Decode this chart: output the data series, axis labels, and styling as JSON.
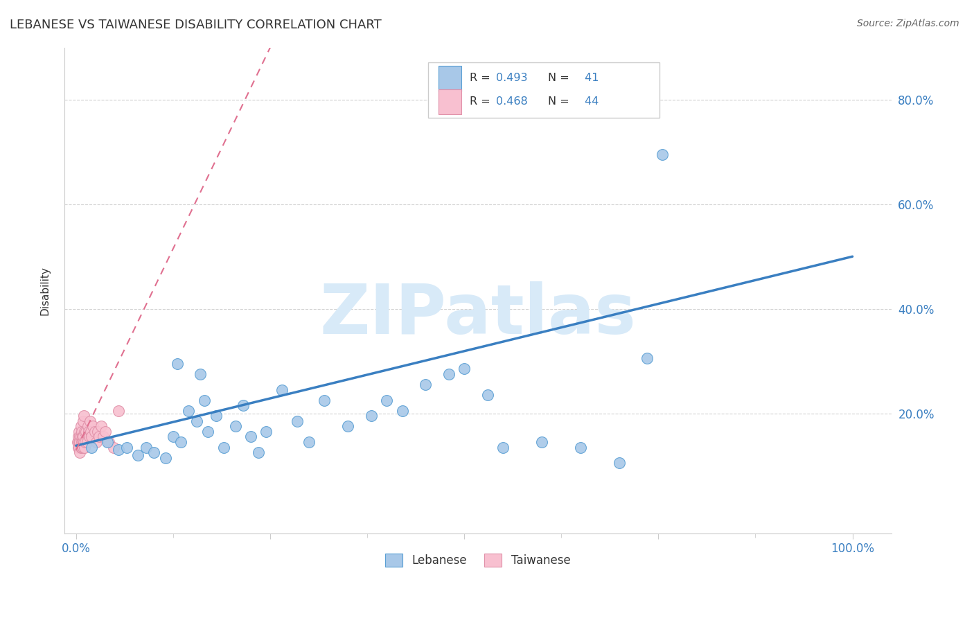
{
  "title": "LEBANESE VS TAIWANESE DISABILITY CORRELATION CHART",
  "source": "Source: ZipAtlas.com",
  "ylabel": "Disability",
  "xlim": [
    -0.015,
    1.05
  ],
  "ylim": [
    -0.03,
    0.9
  ],
  "xtick_positions": [
    0.0,
    0.25,
    0.5,
    0.75,
    1.0
  ],
  "xtick_labels": [
    "0.0%",
    "",
    "",
    "",
    "100.0%"
  ],
  "ytick_positions": [
    0.2,
    0.4,
    0.6,
    0.8
  ],
  "ytick_labels": [
    "20.0%",
    "40.0%",
    "60.0%",
    "80.0%"
  ],
  "lebanese_R": 0.493,
  "lebanese_N": 41,
  "taiwanese_R": 0.468,
  "taiwanese_N": 44,
  "lebanese_color": "#a8c8e8",
  "lebanese_edge_color": "#5a9fd4",
  "lebanese_line_color": "#3a7fc1",
  "taiwanese_color": "#f8c0d0",
  "taiwanese_edge_color": "#e090a8",
  "taiwanese_line_color": "#e07090",
  "background_color": "#ffffff",
  "watermark_text": "ZIPatlas",
  "watermark_color": "#d8eaf8",
  "grid_color": "#cccccc",
  "axis_color": "#cccccc",
  "title_color": "#333333",
  "label_color": "#333333",
  "tick_color": "#3a7fc1",
  "source_color": "#666666",
  "lebanese_x": [
    0.02,
    0.04,
    0.055,
    0.065,
    0.08,
    0.09,
    0.1,
    0.115,
    0.125,
    0.135,
    0.145,
    0.155,
    0.165,
    0.17,
    0.18,
    0.19,
    0.205,
    0.215,
    0.225,
    0.235,
    0.245,
    0.265,
    0.285,
    0.3,
    0.32,
    0.35,
    0.38,
    0.4,
    0.42,
    0.45,
    0.48,
    0.5,
    0.53,
    0.55,
    0.6,
    0.65,
    0.7,
    0.735,
    0.13,
    0.16,
    0.755
  ],
  "lebanese_y": [
    0.135,
    0.145,
    0.13,
    0.135,
    0.12,
    0.135,
    0.125,
    0.115,
    0.155,
    0.145,
    0.205,
    0.185,
    0.225,
    0.165,
    0.195,
    0.135,
    0.175,
    0.215,
    0.155,
    0.125,
    0.165,
    0.245,
    0.185,
    0.145,
    0.225,
    0.175,
    0.195,
    0.225,
    0.205,
    0.255,
    0.275,
    0.285,
    0.235,
    0.135,
    0.145,
    0.135,
    0.105,
    0.305,
    0.295,
    0.275,
    0.695
  ],
  "taiwanese_x": [
    0.002,
    0.003,
    0.003,
    0.004,
    0.004,
    0.004,
    0.005,
    0.005,
    0.005,
    0.006,
    0.006,
    0.006,
    0.007,
    0.007,
    0.007,
    0.008,
    0.008,
    0.009,
    0.009,
    0.009,
    0.01,
    0.01,
    0.011,
    0.011,
    0.012,
    0.013,
    0.014,
    0.015,
    0.016,
    0.017,
    0.018,
    0.019,
    0.02,
    0.022,
    0.024,
    0.026,
    0.028,
    0.03,
    0.032,
    0.035,
    0.038,
    0.042,
    0.048,
    0.055
  ],
  "taiwanese_y": [
    0.145,
    0.135,
    0.155,
    0.145,
    0.135,
    0.165,
    0.125,
    0.155,
    0.145,
    0.135,
    0.155,
    0.175,
    0.145,
    0.165,
    0.135,
    0.155,
    0.145,
    0.135,
    0.185,
    0.155,
    0.195,
    0.145,
    0.135,
    0.165,
    0.145,
    0.165,
    0.145,
    0.175,
    0.165,
    0.155,
    0.185,
    0.165,
    0.155,
    0.175,
    0.165,
    0.145,
    0.165,
    0.155,
    0.175,
    0.155,
    0.165,
    0.145,
    0.135,
    0.205
  ],
  "leb_line_start_x": 0.0,
  "leb_line_start_y": 0.138,
  "leb_line_end_x": 1.0,
  "leb_line_end_y": 0.5,
  "tw_line_start_x": 0.0,
  "tw_line_start_y": 0.13,
  "tw_line_end_x": 0.25,
  "tw_line_end_y": 0.9
}
